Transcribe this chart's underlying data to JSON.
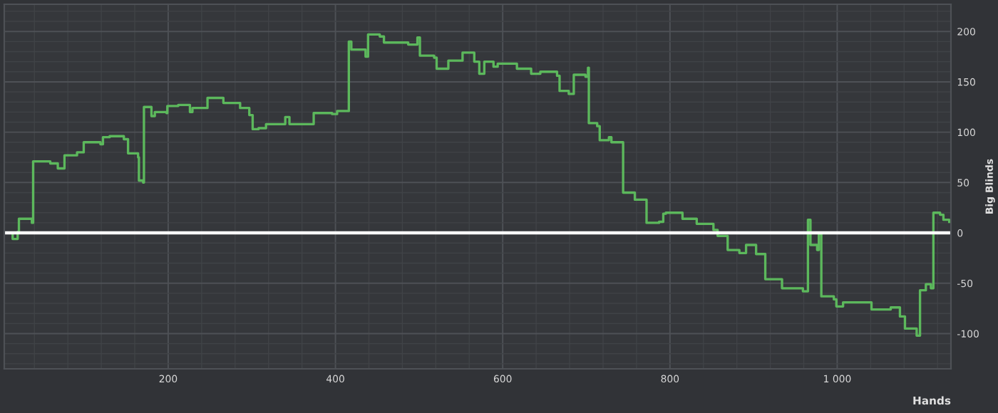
{
  "chart_data": {
    "type": "step",
    "xlabel": "Hands",
    "ylabel": "Big Blinds",
    "x": [
      6,
      14,
      20,
      21.5,
      37,
      38.5,
      59,
      68,
      76,
      91,
      99,
      119,
      122,
      130,
      147,
      152,
      164,
      165,
      170,
      171,
      180,
      184,
      198,
      199,
      212,
      226,
      229,
      246,
      247,
      266,
      286,
      297,
      301,
      308,
      317,
      338,
      340,
      345,
      371,
      374,
      396,
      402,
      414,
      416,
      419,
      436,
      439,
      453,
      458,
      487,
      498,
      501,
      518,
      521,
      529,
      535,
      552,
      566,
      572,
      578,
      589,
      594,
      617,
      631,
      634,
      645,
      665,
      668,
      679,
      685,
      699,
      702,
      703,
      713,
      716,
      727,
      730,
      741,
      744,
      758,
      772,
      787,
      792,
      795,
      815,
      832,
      852,
      857,
      869,
      883,
      891,
      903,
      914,
      934,
      959,
      965,
      968,
      976,
      978,
      981,
      996,
      999,
      1007,
      1030,
      1041,
      1064,
      1075,
      1081,
      1095,
      1099,
      1106,
      1112,
      1115,
      1123,
      1127,
      1134
    ],
    "series": [
      {
        "color": "#5cb85c",
        "values": [
          0,
          -6,
          1,
          14,
          10,
          71,
          69,
          64,
          77,
          80,
          90,
          88,
          95,
          96,
          93,
          79,
          75,
          52,
          50,
          125,
          116,
          120,
          119,
          126,
          127,
          120,
          124,
          124,
          134,
          129,
          124,
          117,
          103,
          104,
          108,
          108,
          115,
          108,
          108,
          119,
          118,
          121,
          121,
          190,
          182,
          175,
          197,
          195,
          189,
          187,
          194,
          176,
          174,
          163,
          163,
          171,
          179,
          170,
          158,
          170,
          165,
          168,
          163,
          163,
          158,
          160,
          156,
          141,
          138,
          157,
          155,
          164,
          109,
          106,
          92,
          95,
          90,
          90,
          40,
          33,
          10,
          11,
          19,
          20,
          14,
          9,
          3,
          -3,
          -17,
          -20,
          -12,
          -21,
          -46,
          -55,
          -58,
          13,
          -12,
          -17,
          -1,
          -63,
          -66,
          -73,
          -69,
          -69,
          -76,
          -74,
          -83,
          -95,
          -102,
          -57,
          -51,
          -55,
          20,
          18,
          13,
          11
        ]
      }
    ],
    "xlim": [
      4,
      1136
    ],
    "ylim": [
      -135,
      227
    ],
    "xticks": [
      {
        "value": 40,
        "label": null
      },
      {
        "value": 80,
        "label": null
      },
      {
        "value": 120,
        "label": null
      },
      {
        "value": 160,
        "label": null
      },
      200,
      {
        "value": 240,
        "label": null
      },
      {
        "value": 280,
        "label": null
      },
      {
        "value": 320,
        "label": null
      },
      {
        "value": 360,
        "label": null
      },
      400,
      {
        "value": 440,
        "label": null
      },
      {
        "value": 480,
        "label": null
      },
      {
        "value": 520,
        "label": null
      },
      {
        "value": 560,
        "label": null
      },
      600,
      {
        "value": 640,
        "label": null
      },
      {
        "value": 680,
        "label": null
      },
      {
        "value": 720,
        "label": null
      },
      {
        "value": 760,
        "label": null
      },
      800,
      {
        "value": 840,
        "label": null
      },
      {
        "value": 880,
        "label": null
      },
      {
        "value": 920,
        "label": null
      },
      {
        "value": 960,
        "label": null
      },
      {
        "value": 1000,
        "label": "1 000"
      },
      {
        "value": 1040,
        "label": null
      },
      {
        "value": 1080,
        "label": null
      },
      {
        "value": 1120,
        "label": null
      }
    ],
    "yticks": [
      {
        "value": -130,
        "label": null
      },
      {
        "value": -120,
        "label": null
      },
      {
        "value": -110,
        "label": null
      },
      -100,
      {
        "value": -90,
        "label": null
      },
      {
        "value": -80,
        "label": null
      },
      {
        "value": -70,
        "label": null
      },
      {
        "value": -60,
        "label": null
      },
      -50,
      {
        "value": -40,
        "label": null
      },
      {
        "value": -30,
        "label": null
      },
      {
        "value": -20,
        "label": null
      },
      {
        "value": -10,
        "label": null
      },
      0,
      {
        "value": 10,
        "label": null
      },
      {
        "value": 20,
        "label": null
      },
      {
        "value": 30,
        "label": null
      },
      {
        "value": 40,
        "label": null
      },
      50,
      {
        "value": 60,
        "label": null
      },
      {
        "value": 70,
        "label": null
      },
      {
        "value": 80,
        "label": null
      },
      {
        "value": 90,
        "label": null
      },
      100,
      {
        "value": 110,
        "label": null
      },
      {
        "value": 120,
        "label": null
      },
      {
        "value": 130,
        "label": null
      },
      {
        "value": 140,
        "label": null
      },
      150,
      {
        "value": 160,
        "label": null
      },
      {
        "value": 170,
        "label": null
      },
      {
        "value": 180,
        "label": null
      },
      {
        "value": 190,
        "label": null
      },
      200,
      {
        "value": 210,
        "label": null
      },
      {
        "value": 220,
        "label": null
      }
    ],
    "grid": true,
    "ref_lines": [
      {
        "axis": "y",
        "value": 0,
        "color": "#ffffff"
      }
    ]
  }
}
